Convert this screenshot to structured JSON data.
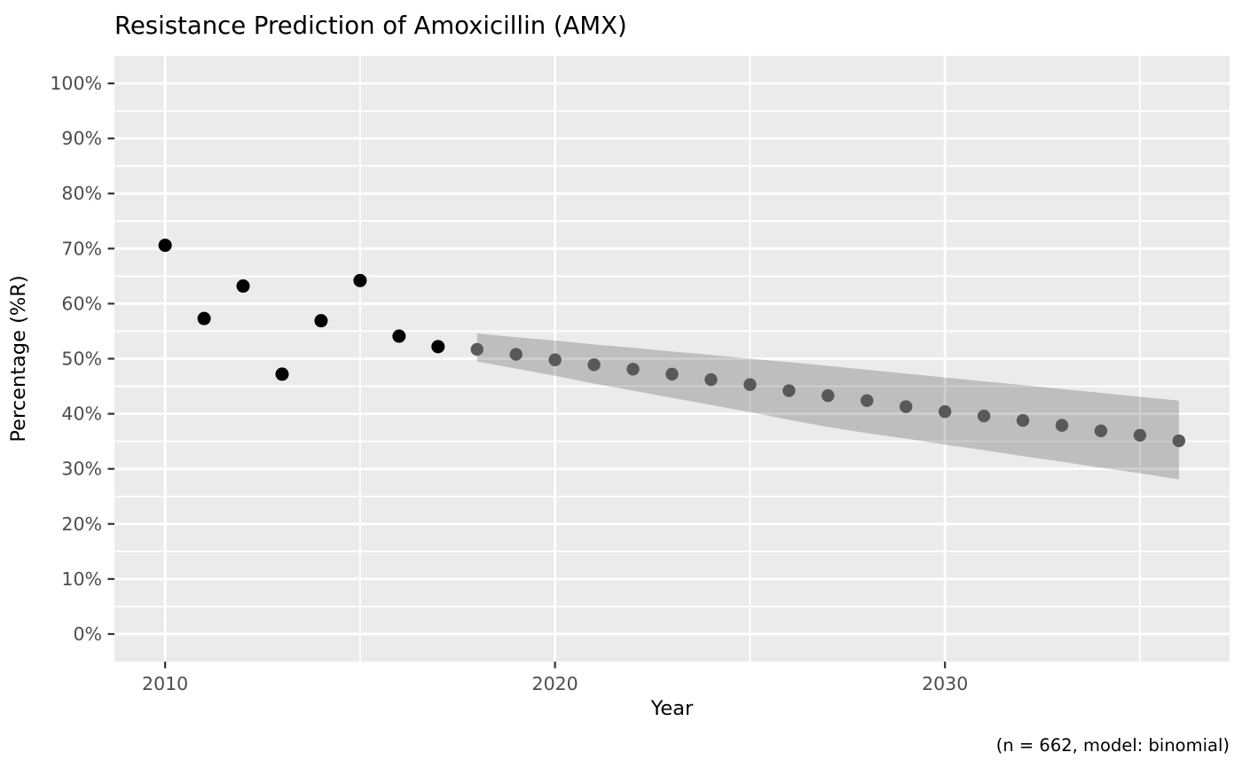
{
  "colors": {
    "background": "#FFFFFF",
    "panel": "#EBEBEB",
    "grid": "#FFFFFF",
    "observed_point": "#000000",
    "predicted_point": "#595959",
    "ribbon": "rgba(0,0,0,0.19)",
    "axis_tick_text": "#4D4D4D",
    "tick_mark": "#333333",
    "title_text": "#000000"
  },
  "chart_data": {
    "type": "scatter",
    "title": "Resistance Prediction of Amoxicillin (AMX)",
    "xlabel": "Year",
    "ylabel": "Percentage (%R)",
    "caption": "(n = 662, model: binomial)",
    "grid": "on",
    "legend_position": "none",
    "x_axis": {
      "range": [
        2008.7,
        2037.3
      ],
      "ticks": [
        {
          "value": 2010,
          "label": "2010"
        },
        {
          "value": 2020,
          "label": "2020"
        },
        {
          "value": 2030,
          "label": "2030"
        }
      ],
      "minor_values": [
        2015,
        2025,
        2035
      ]
    },
    "y_axis": {
      "range": [
        -5,
        105
      ],
      "ticks": [
        {
          "value": 0,
          "label": "0%"
        },
        {
          "value": 10,
          "label": "10%"
        },
        {
          "value": 20,
          "label": "20%"
        },
        {
          "value": 30,
          "label": "30%"
        },
        {
          "value": 40,
          "label": "40%"
        },
        {
          "value": 50,
          "label": "50%"
        },
        {
          "value": 60,
          "label": "60%"
        },
        {
          "value": 70,
          "label": "70%"
        },
        {
          "value": 80,
          "label": "80%"
        },
        {
          "value": 90,
          "label": "90%"
        },
        {
          "value": 100,
          "label": "100%"
        }
      ],
      "minor_values": [
        5,
        15,
        25,
        35,
        45,
        55,
        65,
        75,
        85,
        95
      ]
    },
    "series": [
      {
        "name": "observed",
        "type": "points",
        "color": "#000000",
        "x": [
          2010,
          2011,
          2012,
          2013,
          2014,
          2015,
          2016,
          2017
        ],
        "y": [
          70.6,
          57.3,
          63.2,
          47.2,
          56.9,
          64.2,
          54.1,
          52.2
        ]
      },
      {
        "name": "predicted",
        "type": "points",
        "color": "#595959",
        "x": [
          2018,
          2019,
          2020,
          2021,
          2022,
          2023,
          2024,
          2025,
          2026,
          2027,
          2028,
          2029,
          2030,
          2031,
          2032,
          2033,
          2034,
          2035,
          2036
        ],
        "y": [
          51.7,
          50.8,
          49.8,
          48.9,
          48.1,
          47.2,
          46.2,
          45.3,
          44.2,
          43.3,
          42.4,
          41.3,
          40.4,
          39.6,
          38.8,
          37.9,
          36.9,
          36.1,
          35.1
        ]
      },
      {
        "name": "confidence_interval",
        "type": "ribbon",
        "color": "rgba(0,0,0,0.19)",
        "x": [
          2018,
          2019,
          2020,
          2021,
          2022,
          2023,
          2024,
          2025,
          2026,
          2027,
          2028,
          2029,
          2030,
          2031,
          2032,
          2033,
          2034,
          2035,
          2036
        ],
        "upper": [
          54.6,
          53.9,
          53.3,
          52.6,
          52.0,
          51.3,
          50.7,
          50.0,
          49.4,
          48.7,
          48.0,
          47.3,
          46.6,
          45.9,
          45.2,
          44.5,
          43.8,
          43.1,
          42.4
        ],
        "lower": [
          49.5,
          48.2,
          46.9,
          45.5,
          44.2,
          42.9,
          41.6,
          40.3,
          38.9,
          37.6,
          36.5,
          35.5,
          34.4,
          33.4,
          32.3,
          31.3,
          30.2,
          29.2,
          28.1
        ]
      }
    ]
  }
}
